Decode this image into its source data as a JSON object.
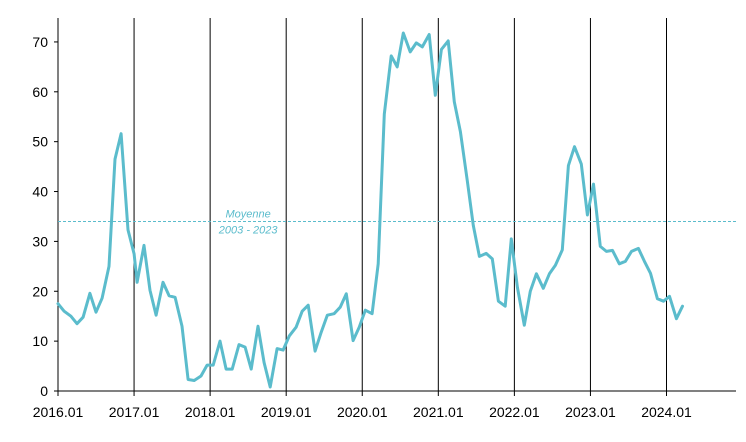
{
  "chart_data": {
    "type": "line",
    "title": "",
    "xlabel": "",
    "ylabel": "",
    "ylim": [
      0,
      75
    ],
    "yticks": [
      0,
      10,
      20,
      30,
      40,
      50,
      60,
      70
    ],
    "xlim": [
      2016.0,
      2024.83
    ],
    "xticks": [
      {
        "value": 2016,
        "label": "2016.01"
      },
      {
        "value": 2017,
        "label": "2017.01"
      },
      {
        "value": 2018,
        "label": "2018.01"
      },
      {
        "value": 2019,
        "label": "2019.01"
      },
      {
        "value": 2020,
        "label": "2020.01"
      },
      {
        "value": 2021,
        "label": "2021.01"
      },
      {
        "value": 2022,
        "label": "2022.01"
      },
      {
        "value": 2023,
        "label": "2023.01"
      },
      {
        "value": 2024,
        "label": "2024.01"
      }
    ],
    "vertical_gridlines_at_years": true,
    "horizontal_grid": false,
    "legend": "none",
    "colors": {
      "series": "#5bbccc",
      "reference": "#5bbccc",
      "axis": "#000000"
    },
    "reference_line": {
      "value": 34,
      "style": "dashed",
      "label_line1": "Moyenne",
      "label_line2": "2003 - 2023"
    },
    "series": [
      {
        "values": [
          [
            2016.0,
            17.5
          ],
          [
            2016.08,
            16
          ],
          [
            2016.17,
            15
          ],
          [
            2016.25,
            13.5
          ],
          [
            2016.33,
            14.8
          ],
          [
            2016.42,
            19.6
          ],
          [
            2016.5,
            15.8
          ],
          [
            2016.58,
            18.6
          ],
          [
            2016.67,
            25
          ],
          [
            2016.75,
            46.5
          ],
          [
            2016.83,
            51.6
          ],
          [
            2016.92,
            32.3
          ],
          [
            2017.0,
            27.5
          ],
          [
            2017.04,
            21.8
          ],
          [
            2017.13,
            29.2
          ],
          [
            2017.21,
            20.2
          ],
          [
            2017.29,
            15.2
          ],
          [
            2017.38,
            21.8
          ],
          [
            2017.46,
            19.1
          ],
          [
            2017.54,
            18.8
          ],
          [
            2017.63,
            13
          ],
          [
            2017.71,
            2.3
          ],
          [
            2017.79,
            2.1
          ],
          [
            2017.88,
            3
          ],
          [
            2017.96,
            5.2
          ],
          [
            2018.04,
            5.2
          ],
          [
            2018.13,
            10
          ],
          [
            2018.21,
            4.4
          ],
          [
            2018.29,
            4.4
          ],
          [
            2018.38,
            9.3
          ],
          [
            2018.46,
            8.8
          ],
          [
            2018.54,
            4.4
          ],
          [
            2018.63,
            13
          ],
          [
            2018.71,
            5.7
          ],
          [
            2018.79,
            0.8
          ],
          [
            2018.88,
            8.5
          ],
          [
            2018.96,
            8.2
          ],
          [
            2019.04,
            11
          ],
          [
            2019.13,
            12.8
          ],
          [
            2019.21,
            16
          ],
          [
            2019.29,
            17.2
          ],
          [
            2019.38,
            8
          ],
          [
            2019.46,
            11.8
          ],
          [
            2019.54,
            15.2
          ],
          [
            2019.63,
            15.5
          ],
          [
            2019.71,
            16.8
          ],
          [
            2019.79,
            19.5
          ],
          [
            2019.88,
            10.1
          ],
          [
            2019.96,
            12.8
          ],
          [
            2020.04,
            16.2
          ],
          [
            2020.13,
            15.5
          ],
          [
            2020.21,
            25.5
          ],
          [
            2020.29,
            55.5
          ],
          [
            2020.38,
            67.2
          ],
          [
            2020.46,
            65
          ],
          [
            2020.54,
            71.8
          ],
          [
            2020.63,
            68
          ],
          [
            2020.71,
            69.8
          ],
          [
            2020.79,
            69
          ],
          [
            2020.88,
            71.5
          ],
          [
            2020.96,
            59.3
          ],
          [
            2021.04,
            68.5
          ],
          [
            2021.13,
            70.2
          ],
          [
            2021.21,
            58
          ],
          [
            2021.29,
            52
          ],
          [
            2021.38,
            42.3
          ],
          [
            2021.46,
            33.2
          ],
          [
            2021.54,
            27
          ],
          [
            2021.63,
            27.6
          ],
          [
            2021.71,
            26.5
          ],
          [
            2021.79,
            18
          ],
          [
            2021.88,
            17
          ],
          [
            2021.96,
            30.5
          ],
          [
            2022.04,
            20.8
          ],
          [
            2022.13,
            13.2
          ],
          [
            2022.21,
            20
          ],
          [
            2022.29,
            23.5
          ],
          [
            2022.38,
            20.6
          ],
          [
            2022.46,
            23.5
          ],
          [
            2022.54,
            25.2
          ],
          [
            2022.63,
            28.3
          ],
          [
            2022.71,
            45.2
          ],
          [
            2022.79,
            49
          ],
          [
            2022.88,
            45.5
          ],
          [
            2022.96,
            35.3
          ],
          [
            2023.04,
            41.5
          ],
          [
            2023.13,
            29
          ],
          [
            2023.21,
            28
          ],
          [
            2023.29,
            28.2
          ],
          [
            2023.38,
            25.5
          ],
          [
            2023.46,
            26
          ],
          [
            2023.54,
            28
          ],
          [
            2023.63,
            28.6
          ],
          [
            2023.71,
            26
          ],
          [
            2023.79,
            23.6
          ],
          [
            2023.88,
            18.5
          ],
          [
            2023.96,
            18
          ],
          [
            2024.04,
            19
          ],
          [
            2024.13,
            14.5
          ],
          [
            2024.21,
            17
          ]
        ]
      }
    ]
  }
}
